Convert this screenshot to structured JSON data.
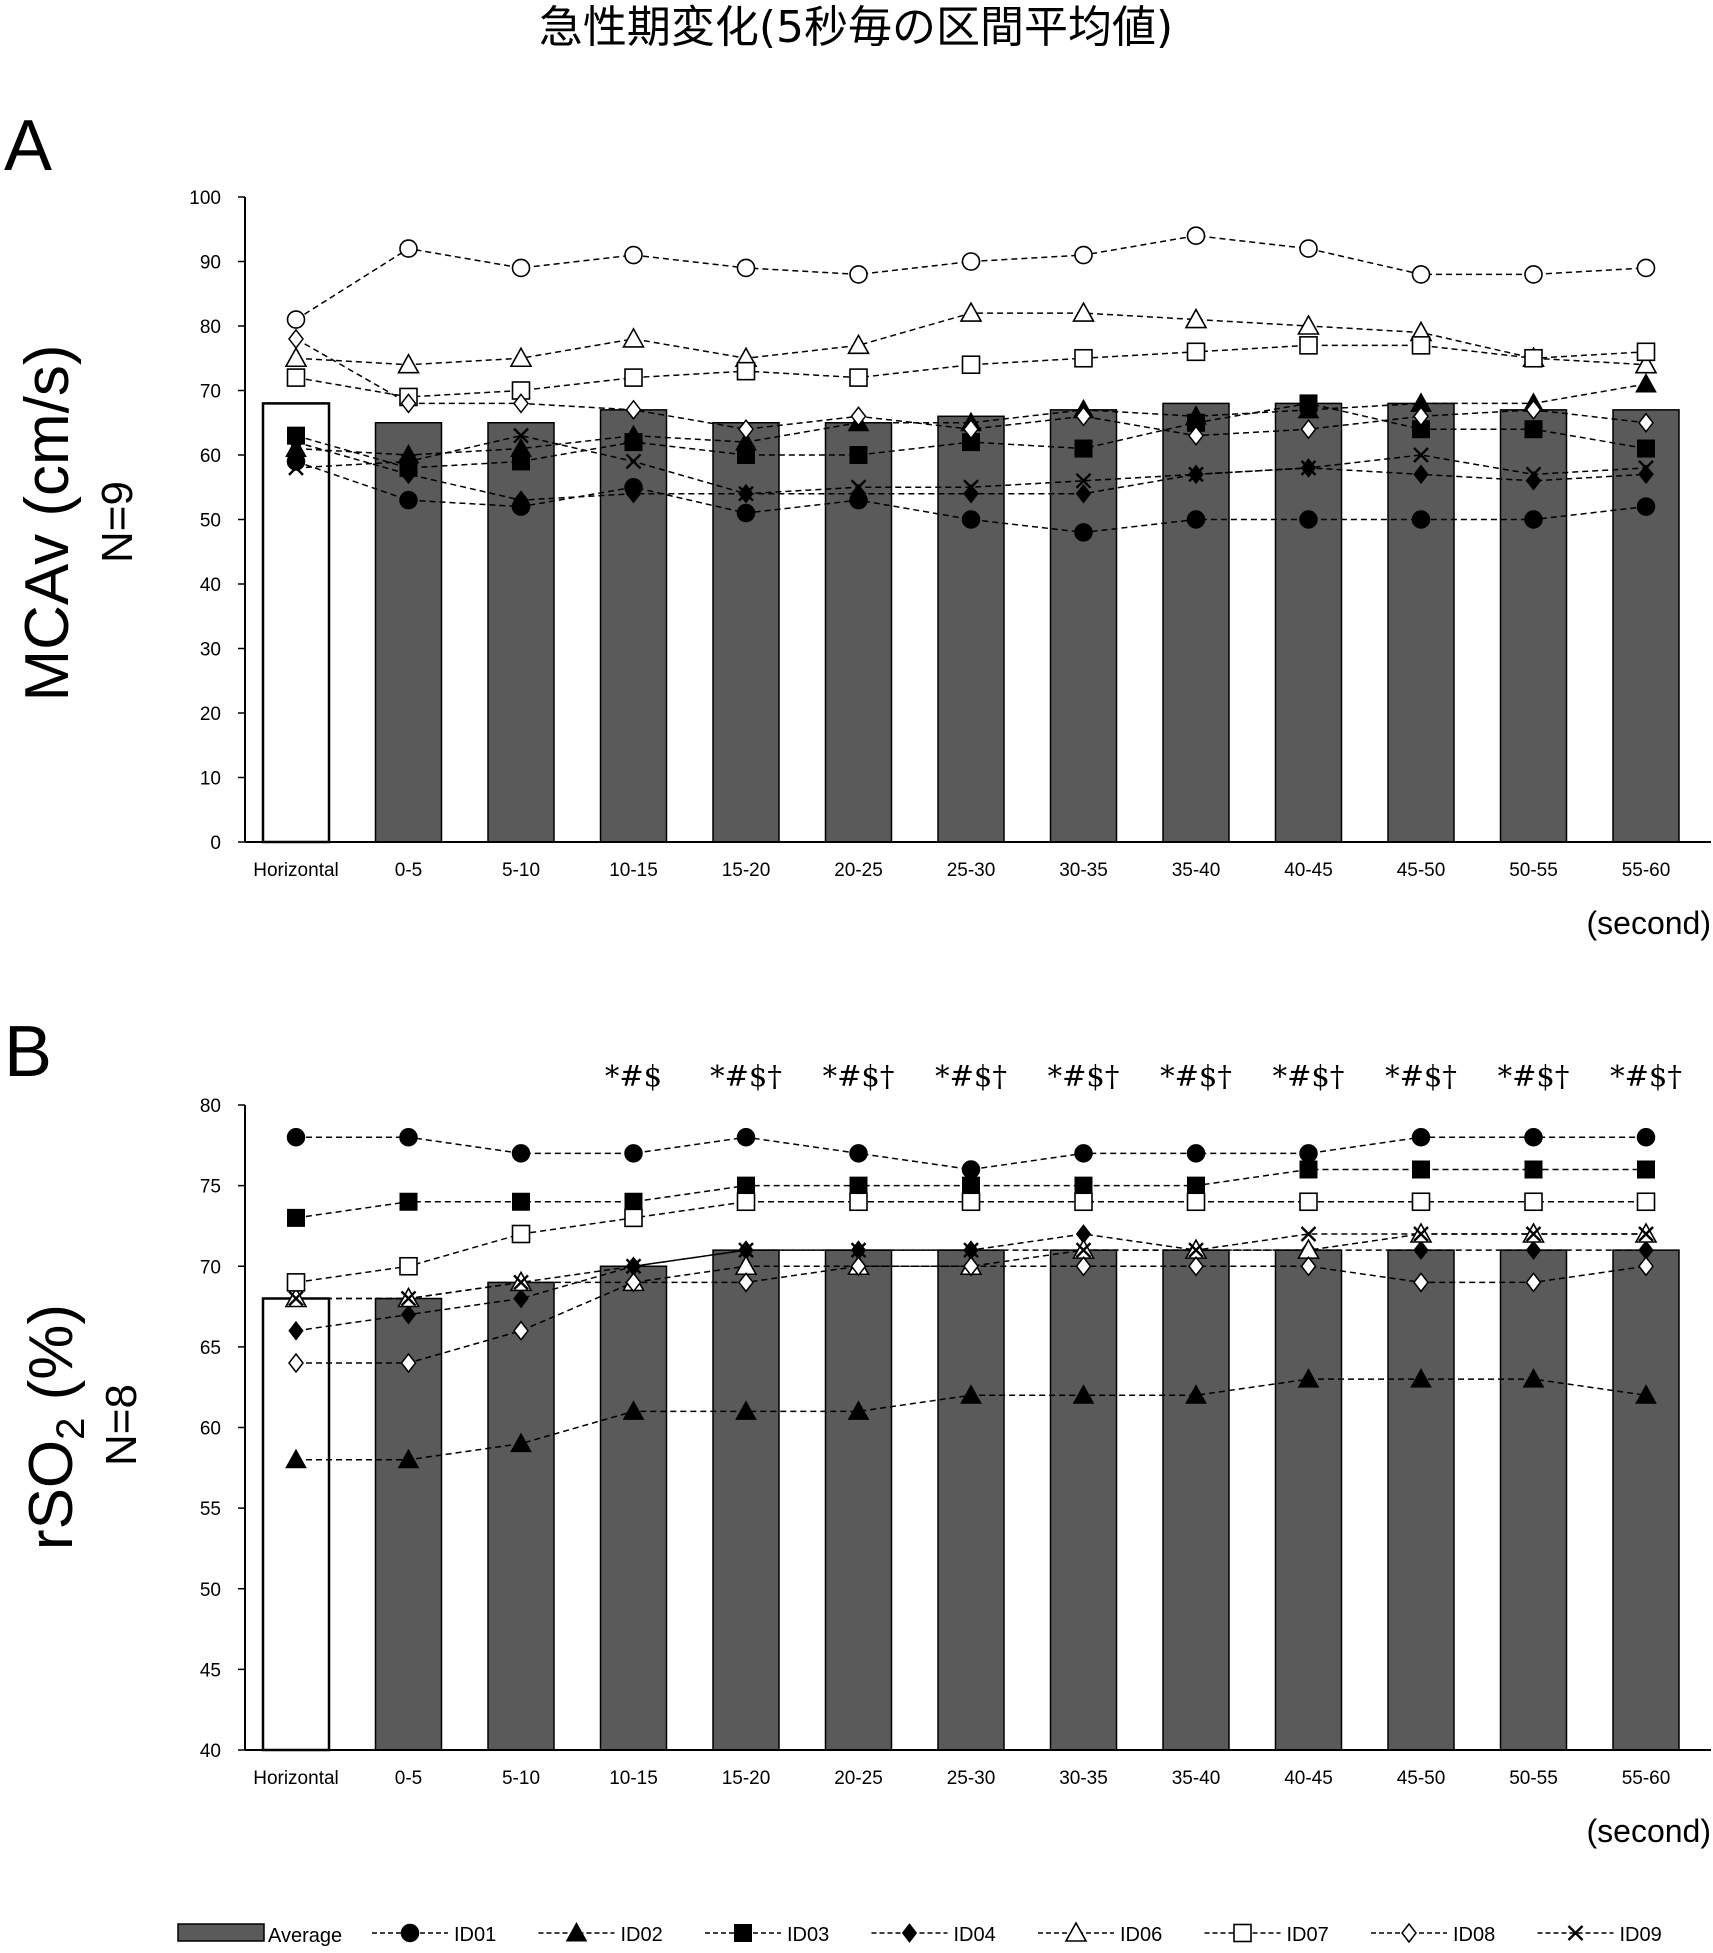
{
  "figure_title": "急性期変化(5秒毎の区間平均値)",
  "colors": {
    "bar_fill": "#5a5a5a",
    "baseline_fill": "#ffffff",
    "ink": "#000000"
  },
  "legend": {
    "average": "Average",
    "ids": [
      "ID01",
      "ID02",
      "ID03",
      "ID04",
      "ID06",
      "ID07",
      "ID08",
      "ID09"
    ]
  },
  "chart_data": [
    {
      "panel": "A",
      "type": "bar",
      "ylabel": "MCAv (cm/s)",
      "ylabel_n": "N=9",
      "xunit": "(second)",
      "ylim": [
        0,
        100
      ],
      "yticks": [
        0,
        10,
        20,
        30,
        40,
        50,
        60,
        70,
        80,
        90,
        100
      ],
      "categories": [
        "Horizontal",
        "0-5",
        "5-10",
        "10-15",
        "15-20",
        "20-25",
        "25-30",
        "30-35",
        "35-40",
        "40-45",
        "45-50",
        "50-55",
        "55-60"
      ],
      "annotations": [],
      "bars": {
        "name": "Average",
        "values": [
          68,
          65,
          65,
          67,
          65,
          65,
          66,
          67,
          68,
          68,
          68,
          67,
          67
        ]
      },
      "series": [
        {
          "name": "ID01",
          "marker": "circle-filled",
          "values": [
            59,
            53,
            52,
            55,
            51,
            53,
            50,
            48,
            50,
            50,
            50,
            50,
            52
          ]
        },
        {
          "name": "ID02",
          "marker": "triangle-filled",
          "values": [
            61,
            60,
            61,
            63,
            62,
            65,
            65,
            67,
            66,
            67,
            68,
            68,
            71
          ]
        },
        {
          "name": "ID03",
          "marker": "square-filled",
          "values": [
            63,
            58,
            59,
            62,
            60,
            60,
            62,
            61,
            65,
            68,
            64,
            64,
            61
          ]
        },
        {
          "name": "ID04",
          "marker": "diamond-filled",
          "values": [
            62,
            57,
            53,
            54,
            54,
            54,
            54,
            54,
            57,
            58,
            57,
            56,
            57
          ]
        },
        {
          "name": "ID06",
          "marker": "triangle-open",
          "values": [
            75,
            74,
            75,
            78,
            75,
            77,
            82,
            82,
            81,
            80,
            79,
            75,
            74
          ]
        },
        {
          "name": "ID07",
          "marker": "square-open",
          "values": [
            72,
            69,
            70,
            72,
            73,
            72,
            74,
            75,
            76,
            77,
            77,
            75,
            76
          ]
        },
        {
          "name": "ID08",
          "marker": "diamond-open",
          "values": [
            78,
            68,
            68,
            67,
            64,
            66,
            64,
            66,
            63,
            64,
            66,
            67,
            65
          ]
        },
        {
          "name": "ID09",
          "marker": "x",
          "values": [
            58,
            59,
            63,
            59,
            54,
            55,
            55,
            56,
            57,
            58,
            60,
            57,
            58
          ]
        },
        {
          "name": "",
          "marker": "circle-open",
          "values": [
            81,
            92,
            89,
            91,
            89,
            88,
            90,
            91,
            94,
            92,
            88,
            88,
            89
          ]
        }
      ]
    },
    {
      "panel": "B",
      "type": "bar",
      "ylabel": "rSO",
      "ylabel_sub": "2",
      "ylabel_unit": " (%)",
      "ylabel_n": "N=8",
      "xunit": "(second)",
      "ylim": [
        40,
        80
      ],
      "yticks": [
        40,
        45,
        50,
        55,
        60,
        65,
        70,
        75,
        80
      ],
      "categories": [
        "Horizontal",
        "0-5",
        "5-10",
        "10-15",
        "15-20",
        "20-25",
        "25-30",
        "30-35",
        "35-40",
        "40-45",
        "45-50",
        "50-55",
        "55-60"
      ],
      "annotations": [
        "",
        "",
        "",
        "*#$",
        "*#$†",
        "*#$†",
        "*#$†",
        "*#$†",
        "*#$†",
        "*#$†",
        "*#$†",
        "*#$†",
        "*#$†"
      ],
      "bars": {
        "name": "Average",
        "values": [
          68,
          68,
          69,
          70,
          71,
          71,
          71,
          71,
          71,
          71,
          71,
          71,
          71
        ]
      },
      "series": [
        {
          "name": "ID01",
          "marker": "circle-filled",
          "values": [
            78,
            78,
            77,
            77,
            78,
            77,
            76,
            77,
            77,
            77,
            78,
            78,
            78
          ]
        },
        {
          "name": "ID02",
          "marker": "triangle-filled",
          "values": [
            58,
            58,
            59,
            61,
            61,
            61,
            62,
            62,
            62,
            63,
            63,
            63,
            62
          ]
        },
        {
          "name": "ID03",
          "marker": "square-filled",
          "values": [
            73,
            74,
            74,
            74,
            75,
            75,
            75,
            75,
            75,
            76,
            76,
            76,
            76
          ]
        },
        {
          "name": "ID04",
          "marker": "diamond-filled",
          "values": [
            66,
            67,
            68,
            70,
            71,
            71,
            71,
            72,
            71,
            71,
            71,
            71,
            71
          ]
        },
        {
          "name": "ID06",
          "marker": "triangle-open",
          "values": [
            68,
            68,
            69,
            69,
            70,
            70,
            70,
            71,
            71,
            71,
            72,
            72,
            72
          ]
        },
        {
          "name": "ID07",
          "marker": "square-open",
          "values": [
            69,
            70,
            72,
            73,
            74,
            74,
            74,
            74,
            74,
            74,
            74,
            74,
            74
          ]
        },
        {
          "name": "ID08",
          "marker": "diamond-open",
          "values": [
            64,
            64,
            66,
            69,
            69,
            70,
            70,
            70,
            70,
            70,
            69,
            69,
            70
          ]
        },
        {
          "name": "ID09",
          "marker": "x",
          "values": [
            68,
            68,
            69,
            70,
            71,
            71,
            71,
            71,
            71,
            72,
            72,
            72,
            72
          ]
        }
      ]
    }
  ]
}
